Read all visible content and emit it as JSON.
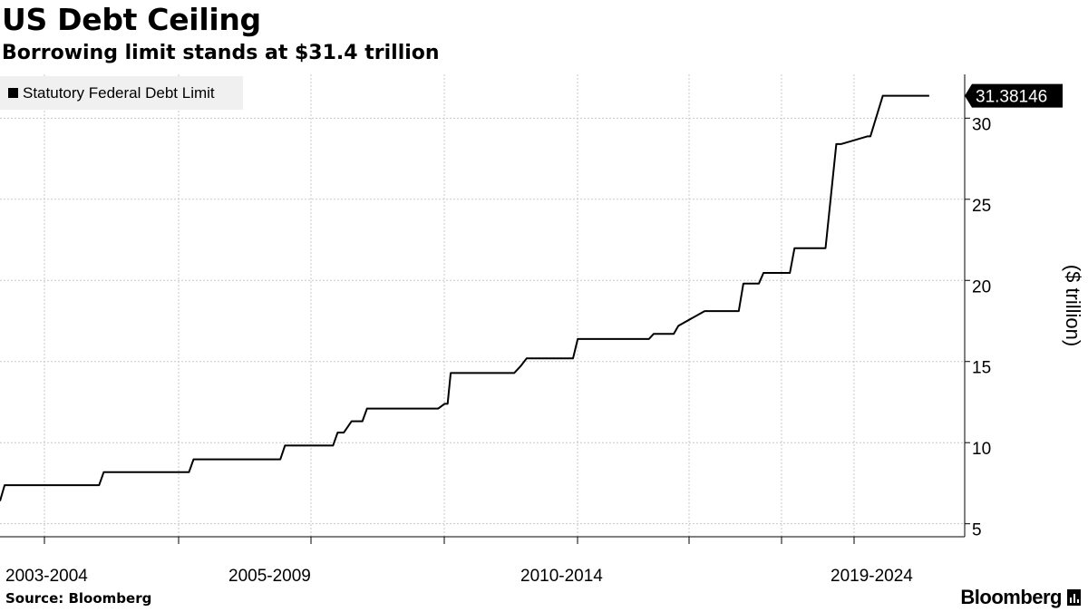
{
  "title": "US Debt Ceiling",
  "subtitle": "Borrowing limit stands at $31.4 trillion",
  "source": "Source: Bloomberg",
  "brand": "Bloomberg",
  "colors": {
    "line": "#000000",
    "grid": "#c8c8c8",
    "legend_bg": "#f0f0f0"
  },
  "chart_data": {
    "type": "line",
    "title": "US Debt Ceiling",
    "subtitle": "Borrowing limit stands at $31.4 trillion",
    "ylabel": "($ trillion)",
    "xlabel": "",
    "categories": [
      "2003-2004",
      "2005-2009",
      "2010-2014",
      "2019-2024"
    ],
    "ylim": [
      4.2,
      32.7
    ],
    "yticks": [
      5,
      10,
      15,
      20,
      25,
      30
    ],
    "y_axis_side": "right",
    "grid": true,
    "legend": "top-left",
    "last_value_label": "31.38146",
    "series": [
      {
        "name": "Statutory Federal Debt Limit",
        "x": [
          0.0,
          0.3,
          2.0,
          6.4,
          6.7,
          12.2,
          12.5,
          18.1,
          18.4,
          19.2,
          19.5,
          21.5,
          21.8,
          22.2,
          22.7,
          23.4,
          23.7,
          24.3,
          24.6,
          28.3,
          28.7,
          28.9,
          29.1,
          33.2,
          33.6,
          34.0,
          35.0,
          37.0,
          37.3,
          41.9,
          42.2,
          43.5,
          43.8,
          45.5,
          45.8,
          47.7,
          48.0,
          49.0,
          49.3,
          51.0,
          51.3,
          53.0,
          53.3,
          54.0,
          54.3,
          56.0,
          56.2,
          57.0,
          57.3,
          60.0
        ],
        "y": [
          6.4,
          7.38,
          7.38,
          7.38,
          8.18,
          8.18,
          8.97,
          8.97,
          9.82,
          9.82,
          9.82,
          9.82,
          10.62,
          10.62,
          11.32,
          11.32,
          12.1,
          12.1,
          12.1,
          12.1,
          12.39,
          12.39,
          14.29,
          14.29,
          14.7,
          15.19,
          15.19,
          15.19,
          16.39,
          16.39,
          16.7,
          16.7,
          17.2,
          18.11,
          18.11,
          18.11,
          19.81,
          19.81,
          20.46,
          20.46,
          21.99,
          21.99,
          21.99,
          28.4,
          28.4,
          28.88,
          28.88,
          31.38,
          31.38,
          31.38
        ]
      }
    ]
  }
}
